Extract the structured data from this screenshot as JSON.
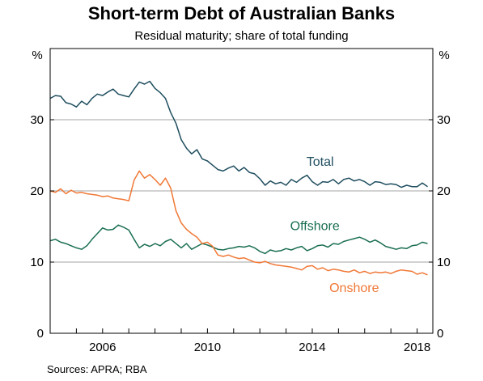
{
  "chart_data": {
    "type": "line",
    "title": "Short-term Debt of Australian Banks",
    "subtitle": "Residual maturity; share of total funding",
    "source": "Sources:   APRA; RBA",
    "y_unit_left": "%",
    "y_unit_right": "%",
    "ylim": [
      0,
      40
    ],
    "xlim": [
      2004.0,
      2018.6
    ],
    "y_ticks": [
      0,
      10,
      20,
      30
    ],
    "x_ticks": [
      2006,
      2010,
      2014,
      2018
    ],
    "x_tick_labels": [
      "2006",
      "2010",
      "2014",
      "2018"
    ],
    "grid": "horizontal",
    "series": [
      {
        "name": "Total",
        "color": "#1f4e5f",
        "points": [
          [
            2004.0,
            33.0
          ],
          [
            2004.2,
            33.4
          ],
          [
            2004.4,
            33.3
          ],
          [
            2004.6,
            32.4
          ],
          [
            2004.8,
            32.2
          ],
          [
            2005.0,
            31.8
          ],
          [
            2005.2,
            32.6
          ],
          [
            2005.4,
            32.1
          ],
          [
            2005.6,
            33.0
          ],
          [
            2005.8,
            33.6
          ],
          [
            2006.0,
            33.4
          ],
          [
            2006.2,
            33.9
          ],
          [
            2006.4,
            34.3
          ],
          [
            2006.6,
            33.6
          ],
          [
            2006.8,
            33.4
          ],
          [
            2007.0,
            33.2
          ],
          [
            2007.2,
            34.3
          ],
          [
            2007.4,
            35.3
          ],
          [
            2007.6,
            35.0
          ],
          [
            2007.8,
            35.4
          ],
          [
            2008.0,
            34.4
          ],
          [
            2008.2,
            33.8
          ],
          [
            2008.4,
            33.0
          ],
          [
            2008.6,
            31.0
          ],
          [
            2008.8,
            29.5
          ],
          [
            2009.0,
            27.2
          ],
          [
            2009.2,
            26.0
          ],
          [
            2009.4,
            25.2
          ],
          [
            2009.6,
            25.8
          ],
          [
            2009.8,
            24.5
          ],
          [
            2010.0,
            24.2
          ],
          [
            2010.2,
            23.6
          ],
          [
            2010.4,
            23.0
          ],
          [
            2010.6,
            22.8
          ],
          [
            2010.8,
            23.2
          ],
          [
            2011.0,
            23.5
          ],
          [
            2011.2,
            22.8
          ],
          [
            2011.4,
            23.3
          ],
          [
            2011.6,
            22.6
          ],
          [
            2011.8,
            22.4
          ],
          [
            2012.0,
            21.7
          ],
          [
            2012.2,
            20.8
          ],
          [
            2012.4,
            21.4
          ],
          [
            2012.6,
            21.0
          ],
          [
            2012.8,
            21.2
          ],
          [
            2013.0,
            20.8
          ],
          [
            2013.2,
            21.6
          ],
          [
            2013.4,
            21.2
          ],
          [
            2013.6,
            21.8
          ],
          [
            2013.8,
            22.2
          ],
          [
            2014.0,
            21.3
          ],
          [
            2014.2,
            20.8
          ],
          [
            2014.4,
            21.3
          ],
          [
            2014.6,
            21.2
          ],
          [
            2014.8,
            21.6
          ],
          [
            2015.0,
            21.0
          ],
          [
            2015.2,
            21.6
          ],
          [
            2015.4,
            21.8
          ],
          [
            2015.6,
            21.4
          ],
          [
            2015.8,
            21.6
          ],
          [
            2016.0,
            21.3
          ],
          [
            2016.2,
            20.8
          ],
          [
            2016.4,
            21.3
          ],
          [
            2016.6,
            21.2
          ],
          [
            2016.8,
            20.9
          ],
          [
            2017.0,
            21.0
          ],
          [
            2017.2,
            20.9
          ],
          [
            2017.4,
            20.5
          ],
          [
            2017.6,
            20.8
          ],
          [
            2017.8,
            20.6
          ],
          [
            2018.0,
            20.6
          ],
          [
            2018.2,
            21.1
          ],
          [
            2018.4,
            20.6
          ]
        ]
      },
      {
        "name": "Offshore",
        "color": "#1a6e52",
        "points": [
          [
            2004.0,
            13.0
          ],
          [
            2004.2,
            13.2
          ],
          [
            2004.4,
            12.8
          ],
          [
            2004.6,
            12.6
          ],
          [
            2004.8,
            12.3
          ],
          [
            2005.0,
            12.0
          ],
          [
            2005.2,
            11.8
          ],
          [
            2005.4,
            12.3
          ],
          [
            2005.6,
            13.2
          ],
          [
            2005.8,
            14.0
          ],
          [
            2006.0,
            14.8
          ],
          [
            2006.2,
            14.5
          ],
          [
            2006.4,
            14.6
          ],
          [
            2006.6,
            15.2
          ],
          [
            2006.8,
            14.9
          ],
          [
            2007.0,
            14.5
          ],
          [
            2007.2,
            13.2
          ],
          [
            2007.4,
            12.0
          ],
          [
            2007.6,
            12.5
          ],
          [
            2007.8,
            12.2
          ],
          [
            2008.0,
            12.6
          ],
          [
            2008.2,
            12.3
          ],
          [
            2008.4,
            12.9
          ],
          [
            2008.6,
            13.2
          ],
          [
            2008.8,
            12.6
          ],
          [
            2009.0,
            12.0
          ],
          [
            2009.2,
            12.6
          ],
          [
            2009.4,
            11.8
          ],
          [
            2009.6,
            12.2
          ],
          [
            2009.8,
            12.6
          ],
          [
            2010.0,
            12.4
          ],
          [
            2010.2,
            12.1
          ],
          [
            2010.4,
            11.8
          ],
          [
            2010.6,
            11.7
          ],
          [
            2010.8,
            11.9
          ],
          [
            2011.0,
            12.0
          ],
          [
            2011.2,
            12.2
          ],
          [
            2011.4,
            12.1
          ],
          [
            2011.6,
            12.3
          ],
          [
            2011.8,
            12.0
          ],
          [
            2012.0,
            11.5
          ],
          [
            2012.2,
            11.2
          ],
          [
            2012.4,
            11.7
          ],
          [
            2012.6,
            11.5
          ],
          [
            2012.8,
            11.6
          ],
          [
            2013.0,
            11.9
          ],
          [
            2013.2,
            11.7
          ],
          [
            2013.4,
            12.0
          ],
          [
            2013.6,
            12.2
          ],
          [
            2013.8,
            11.6
          ],
          [
            2014.0,
            11.9
          ],
          [
            2014.2,
            12.3
          ],
          [
            2014.4,
            12.4
          ],
          [
            2014.6,
            12.1
          ],
          [
            2014.8,
            12.6
          ],
          [
            2015.0,
            12.5
          ],
          [
            2015.2,
            12.9
          ],
          [
            2015.4,
            13.1
          ],
          [
            2015.6,
            13.3
          ],
          [
            2015.8,
            13.5
          ],
          [
            2016.0,
            13.2
          ],
          [
            2016.2,
            12.8
          ],
          [
            2016.4,
            13.1
          ],
          [
            2016.6,
            12.7
          ],
          [
            2016.8,
            12.2
          ],
          [
            2017.0,
            12.0
          ],
          [
            2017.2,
            11.8
          ],
          [
            2017.4,
            12.0
          ],
          [
            2017.6,
            11.9
          ],
          [
            2017.8,
            12.3
          ],
          [
            2018.0,
            12.4
          ],
          [
            2018.2,
            12.8
          ],
          [
            2018.4,
            12.6
          ]
        ]
      },
      {
        "name": "Onshore",
        "color": "#f07836",
        "points": [
          [
            2004.0,
            20.0
          ],
          [
            2004.2,
            19.8
          ],
          [
            2004.4,
            20.3
          ],
          [
            2004.6,
            19.6
          ],
          [
            2004.8,
            20.1
          ],
          [
            2005.0,
            19.7
          ],
          [
            2005.2,
            19.8
          ],
          [
            2005.4,
            19.6
          ],
          [
            2005.6,
            19.5
          ],
          [
            2005.8,
            19.4
          ],
          [
            2006.0,
            19.2
          ],
          [
            2006.2,
            19.3
          ],
          [
            2006.4,
            19.0
          ],
          [
            2006.6,
            18.9
          ],
          [
            2006.8,
            18.8
          ],
          [
            2007.0,
            18.6
          ],
          [
            2007.2,
            21.5
          ],
          [
            2007.4,
            22.8
          ],
          [
            2007.6,
            21.8
          ],
          [
            2007.8,
            22.3
          ],
          [
            2008.0,
            21.6
          ],
          [
            2008.2,
            20.8
          ],
          [
            2008.4,
            21.8
          ],
          [
            2008.6,
            20.4
          ],
          [
            2008.8,
            17.2
          ],
          [
            2009.0,
            15.5
          ],
          [
            2009.2,
            14.6
          ],
          [
            2009.4,
            14.0
          ],
          [
            2009.6,
            13.5
          ],
          [
            2009.8,
            12.6
          ],
          [
            2010.0,
            12.8
          ],
          [
            2010.2,
            12.2
          ],
          [
            2010.4,
            11.0
          ],
          [
            2010.6,
            10.8
          ],
          [
            2010.8,
            11.0
          ],
          [
            2011.0,
            10.7
          ],
          [
            2011.2,
            10.5
          ],
          [
            2011.4,
            10.6
          ],
          [
            2011.6,
            10.3
          ],
          [
            2011.8,
            10.0
          ],
          [
            2012.0,
            9.9
          ],
          [
            2012.2,
            10.1
          ],
          [
            2012.4,
            9.8
          ],
          [
            2012.6,
            9.6
          ],
          [
            2012.8,
            9.5
          ],
          [
            2013.0,
            9.4
          ],
          [
            2013.2,
            9.3
          ],
          [
            2013.4,
            9.1
          ],
          [
            2013.6,
            8.9
          ],
          [
            2013.8,
            9.4
          ],
          [
            2014.0,
            9.5
          ],
          [
            2014.2,
            9.0
          ],
          [
            2014.4,
            9.2
          ],
          [
            2014.6,
            8.8
          ],
          [
            2014.8,
            9.0
          ],
          [
            2015.0,
            8.9
          ],
          [
            2015.2,
            8.7
          ],
          [
            2015.4,
            8.6
          ],
          [
            2015.6,
            8.9
          ],
          [
            2015.8,
            8.5
          ],
          [
            2016.0,
            8.7
          ],
          [
            2016.2,
            8.4
          ],
          [
            2016.4,
            8.6
          ],
          [
            2016.6,
            8.5
          ],
          [
            2016.8,
            8.6
          ],
          [
            2017.0,
            8.4
          ],
          [
            2017.2,
            8.7
          ],
          [
            2017.4,
            8.9
          ],
          [
            2017.6,
            8.8
          ],
          [
            2017.8,
            8.7
          ],
          [
            2018.0,
            8.3
          ],
          [
            2018.2,
            8.5
          ],
          [
            2018.4,
            8.2
          ]
        ]
      }
    ],
    "annotations": [
      {
        "text": "Total",
        "series": "Total",
        "x": 2014.3,
        "y": 23.5
      },
      {
        "text": "Offshore",
        "series": "Offshore",
        "x": 2014.1,
        "y": 14.5
      },
      {
        "text": "Onshore",
        "series": "Onshore",
        "x": 2015.6,
        "y": 5.8
      }
    ]
  }
}
